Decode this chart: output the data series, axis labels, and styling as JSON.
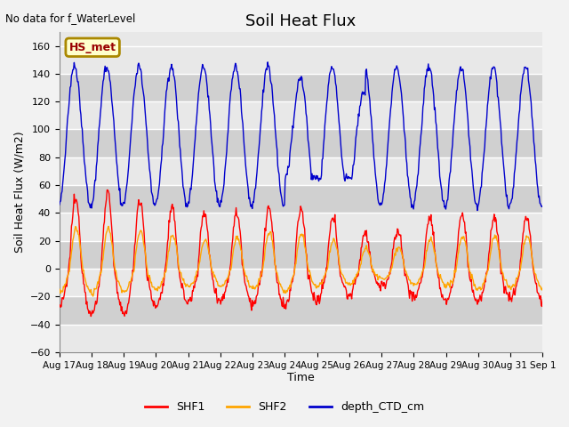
{
  "title": "Soil Heat Flux",
  "ylabel": "Soil Heat Flux (W/m2)",
  "xlabel": "Time",
  "top_left_note": "No data for f_WaterLevel",
  "legend_box_label": "HS_met",
  "ylim": [
    -60,
    170
  ],
  "yticks": [
    -60,
    -40,
    -20,
    0,
    20,
    40,
    60,
    80,
    100,
    120,
    140,
    160
  ],
  "colors": {
    "SHF1": "#ff0000",
    "SHF2": "#ffa500",
    "depth_CTD_cm": "#0000cc",
    "background_light": "#e8e8e8",
    "background_dark": "#d0d0d0",
    "grid": "#ffffff"
  },
  "tick_labels": [
    "Aug 17",
    "Aug 18",
    "Aug 19",
    "Aug 20",
    "Aug 21",
    "Aug 22",
    "Aug 23",
    "Aug 24",
    "Aug 25",
    "Aug 26",
    "Aug 27",
    "Aug 28",
    "Aug 29",
    "Aug 30",
    "Aug 31",
    "Sep 1"
  ],
  "line_width": 1.0,
  "figsize": [
    6.4,
    4.8
  ],
  "dpi": 100
}
